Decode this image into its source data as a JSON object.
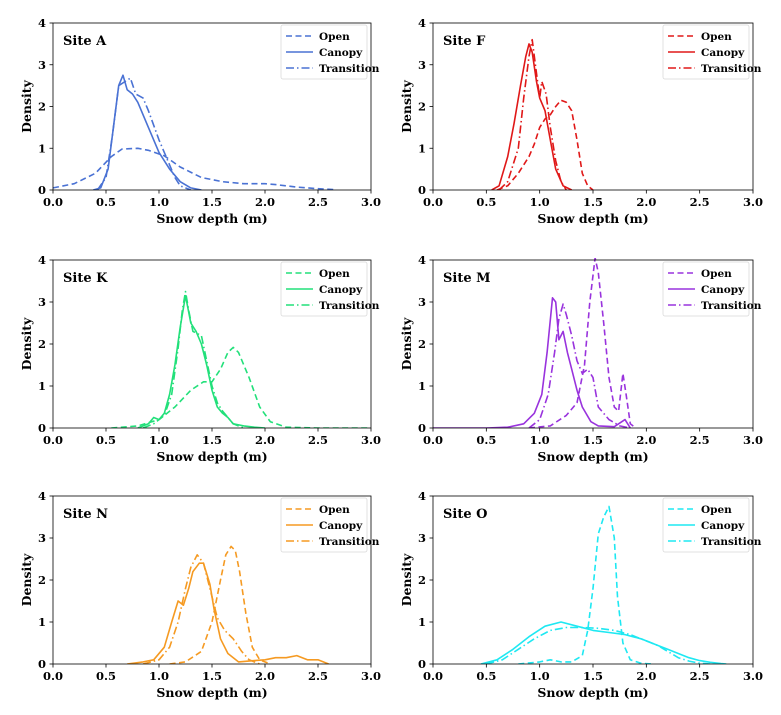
{
  "chart_data": [
    {
      "type": "line",
      "title": "Site A",
      "color": "#4a72d4",
      "xlabel": "Snow depth (m)",
      "ylabel": "Density",
      "xlim": [
        0,
        3
      ],
      "ylim": [
        0,
        4
      ],
      "xticks": [
        "0.0",
        "0.5",
        "1.0",
        "1.5",
        "2.0",
        "2.5",
        "3.0"
      ],
      "yticks": [
        "0",
        "1",
        "2",
        "3",
        "4"
      ],
      "legend_position": "top-right",
      "series": [
        {
          "name": "Open",
          "style": "dashed",
          "x": [
            0,
            0.2,
            0.4,
            0.55,
            0.65,
            0.8,
            0.9,
            1.05,
            1.2,
            1.4,
            1.6,
            1.8,
            2.0,
            2.1,
            2.3,
            2.5,
            2.65
          ],
          "y": [
            0.05,
            0.15,
            0.4,
            0.8,
            0.98,
            1.0,
            0.95,
            0.82,
            0.55,
            0.3,
            0.2,
            0.15,
            0.15,
            0.13,
            0.07,
            0.03,
            0.01
          ]
        },
        {
          "name": "Canopy",
          "style": "solid",
          "x": [
            0.38,
            0.45,
            0.52,
            0.57,
            0.62,
            0.66,
            0.7,
            0.75,
            0.8,
            0.9,
            1.0,
            1.1,
            1.2,
            1.3,
            1.4
          ],
          "y": [
            0.0,
            0.05,
            0.5,
            1.5,
            2.5,
            2.75,
            2.4,
            2.3,
            2.1,
            1.5,
            0.9,
            0.5,
            0.2,
            0.05,
            0.0
          ]
        },
        {
          "name": "Transition",
          "style": "dashdot",
          "x": [
            0.42,
            0.5,
            0.56,
            0.62,
            0.68,
            0.73,
            0.78,
            0.85,
            0.9,
            1.0,
            1.1,
            1.15,
            1.2,
            1.3
          ],
          "y": [
            0.0,
            0.3,
            1.3,
            2.5,
            2.6,
            2.68,
            2.3,
            2.2,
            1.9,
            1.2,
            0.6,
            0.3,
            0.1,
            0.0
          ]
        }
      ]
    },
    {
      "type": "line",
      "title": "Site F",
      "color": "#e01818",
      "xlabel": "Snow depth (m)",
      "ylabel": "Density",
      "xlim": [
        0,
        3
      ],
      "ylim": [
        0,
        4
      ],
      "xticks": [
        "0.0",
        "0.5",
        "1.0",
        "1.5",
        "2.0",
        "2.5",
        "3.0"
      ],
      "yticks": [
        "0",
        "1",
        "2",
        "3",
        "4"
      ],
      "legend_position": "top-right",
      "series": [
        {
          "name": "Open",
          "style": "dashed",
          "x": [
            0.6,
            0.7,
            0.8,
            0.9,
            0.95,
            1.0,
            1.05,
            1.1,
            1.15,
            1.2,
            1.25,
            1.3,
            1.35,
            1.4,
            1.45,
            1.5
          ],
          "y": [
            0.0,
            0.1,
            0.4,
            0.8,
            1.1,
            1.5,
            1.7,
            1.8,
            2.0,
            2.15,
            2.1,
            1.9,
            1.2,
            0.4,
            0.1,
            0.0
          ]
        },
        {
          "name": "Canopy",
          "style": "solid",
          "x": [
            0.55,
            0.62,
            0.7,
            0.76,
            0.82,
            0.87,
            0.9,
            0.93,
            0.97,
            1.0,
            1.05,
            1.1,
            1.15,
            1.22,
            1.3
          ],
          "y": [
            0.0,
            0.1,
            0.8,
            1.6,
            2.5,
            3.2,
            3.5,
            3.3,
            2.6,
            2.2,
            1.9,
            1.2,
            0.5,
            0.1,
            0.0
          ]
        },
        {
          "name": "Transition",
          "style": "dashdot",
          "x": [
            0.62,
            0.7,
            0.8,
            0.85,
            0.9,
            0.93,
            0.96,
            1.0,
            1.02,
            1.06,
            1.1,
            1.15,
            1.2,
            1.25
          ],
          "y": [
            0.0,
            0.2,
            1.0,
            2.2,
            3.2,
            3.6,
            3.0,
            2.2,
            2.6,
            2.3,
            1.5,
            0.7,
            0.2,
            0.0
          ]
        }
      ]
    },
    {
      "type": "line",
      "title": "Site K",
      "color": "#22e07a",
      "xlabel": "Snow depth (m)",
      "ylabel": "Density",
      "xlim": [
        0,
        3
      ],
      "ylim": [
        0,
        4
      ],
      "xticks": [
        "0.0",
        "0.5",
        "1.0",
        "1.5",
        "2.0",
        "2.5",
        "3.0"
      ],
      "yticks": [
        "0",
        "1",
        "2",
        "3",
        "4"
      ],
      "legend_position": "top-right",
      "series": [
        {
          "name": "Open",
          "style": "dashed",
          "x": [
            0.55,
            0.8,
            1.0,
            1.15,
            1.3,
            1.42,
            1.5,
            1.58,
            1.65,
            1.7,
            1.75,
            1.85,
            1.95,
            2.05,
            2.2,
            2.5,
            3.0
          ],
          "y": [
            0.0,
            0.05,
            0.2,
            0.5,
            0.9,
            1.1,
            1.1,
            1.4,
            1.8,
            1.92,
            1.8,
            1.2,
            0.5,
            0.15,
            0.02,
            0.0,
            0.0
          ]
        },
        {
          "name": "Canopy",
          "style": "solid",
          "x": [
            0.8,
            0.9,
            0.95,
            1.0,
            1.05,
            1.1,
            1.15,
            1.2,
            1.25,
            1.3,
            1.35,
            1.4,
            1.45,
            1.5,
            1.55,
            1.6,
            1.65,
            1.7,
            1.8,
            1.9,
            2.0
          ],
          "y": [
            0.0,
            0.1,
            0.25,
            0.2,
            0.35,
            0.8,
            1.5,
            2.4,
            3.15,
            2.5,
            2.3,
            2.0,
            1.5,
            0.9,
            0.5,
            0.35,
            0.25,
            0.1,
            0.05,
            0.02,
            0.0
          ]
        },
        {
          "name": "Transition",
          "style": "dashdot",
          "x": [
            0.85,
            0.95,
            1.05,
            1.12,
            1.18,
            1.22,
            1.25,
            1.28,
            1.32,
            1.4,
            1.45,
            1.5,
            1.55,
            1.6,
            1.7,
            1.8
          ],
          "y": [
            0.0,
            0.1,
            0.3,
            0.8,
            1.9,
            2.8,
            3.25,
            2.8,
            2.3,
            2.2,
            1.6,
            1.0,
            0.6,
            0.4,
            0.1,
            0.0
          ]
        }
      ]
    },
    {
      "type": "line",
      "title": "Site M",
      "color": "#9933dd",
      "xlabel": "Snow depth (m)",
      "ylabel": "Density",
      "xlim": [
        0,
        3
      ],
      "ylim": [
        0,
        4
      ],
      "xticks": [
        "0.0",
        "0.5",
        "1.0",
        "1.5",
        "2.0",
        "2.5",
        "3.0"
      ],
      "yticks": [
        "0",
        "1",
        "2",
        "3",
        "4"
      ],
      "legend_position": "top-right",
      "series": [
        {
          "name": "Open",
          "style": "dashed",
          "x": [
            0.9,
            1.1,
            1.25,
            1.35,
            1.42,
            1.47,
            1.52,
            1.55,
            1.6,
            1.65,
            1.7,
            1.74,
            1.78,
            1.81,
            1.85,
            1.9
          ],
          "y": [
            0.0,
            0.05,
            0.3,
            0.6,
            1.5,
            3.0,
            4.05,
            3.7,
            2.5,
            1.2,
            0.5,
            0.4,
            1.3,
            0.8,
            0.1,
            0.0
          ]
        },
        {
          "name": "Canopy",
          "style": "solid",
          "x": [
            0.0,
            0.3,
            0.5,
            0.7,
            0.85,
            0.95,
            1.02,
            1.07,
            1.12,
            1.15,
            1.18,
            1.22,
            1.26,
            1.3,
            1.35,
            1.4,
            1.48,
            1.55,
            1.7,
            1.8,
            1.85
          ],
          "y": [
            0.0,
            0.0,
            0.0,
            0.02,
            0.1,
            0.35,
            0.8,
            1.8,
            3.1,
            3.0,
            2.1,
            2.3,
            1.8,
            1.4,
            0.9,
            0.5,
            0.15,
            0.05,
            0.03,
            0.2,
            0.0
          ]
        },
        {
          "name": "Transition",
          "style": "dashdot",
          "x": [
            0.9,
            1.0,
            1.08,
            1.14,
            1.18,
            1.22,
            1.25,
            1.3,
            1.35,
            1.4,
            1.45,
            1.5,
            1.55,
            1.65,
            1.75,
            1.85
          ],
          "y": [
            0.0,
            0.2,
            0.8,
            1.8,
            2.6,
            2.95,
            2.7,
            2.2,
            1.6,
            1.3,
            1.4,
            1.2,
            0.5,
            0.2,
            0.05,
            0.0
          ]
        }
      ]
    },
    {
      "type": "line",
      "title": "Site N",
      "color": "#f59a22",
      "xlabel": "Snow depth (m)",
      "ylabel": "Density",
      "xlim": [
        0,
        3
      ],
      "ylim": [
        0,
        4
      ],
      "xticks": [
        "0.0",
        "0.5",
        "1.0",
        "1.5",
        "2.0",
        "2.5",
        "3.0"
      ],
      "yticks": [
        "0",
        "1",
        "2",
        "3",
        "4"
      ],
      "legend_position": "top-right",
      "series": [
        {
          "name": "Open",
          "style": "dashed",
          "x": [
            1.1,
            1.25,
            1.4,
            1.5,
            1.58,
            1.63,
            1.68,
            1.72,
            1.76,
            1.82,
            1.88,
            1.95,
            2.05
          ],
          "y": [
            0.0,
            0.05,
            0.3,
            1.0,
            2.0,
            2.6,
            2.8,
            2.7,
            2.2,
            1.2,
            0.4,
            0.1,
            0.0
          ]
        },
        {
          "name": "Canopy",
          "style": "solid",
          "x": [
            0.7,
            0.85,
            0.95,
            1.05,
            1.12,
            1.18,
            1.23,
            1.28,
            1.32,
            1.38,
            1.42,
            1.48,
            1.52,
            1.58,
            1.65,
            1.75,
            1.9,
            2.0,
            2.1,
            2.2,
            2.3,
            2.4,
            2.5,
            2.6
          ],
          "y": [
            0.0,
            0.05,
            0.1,
            0.4,
            1.0,
            1.5,
            1.4,
            1.8,
            2.2,
            2.4,
            2.4,
            1.9,
            1.3,
            0.6,
            0.25,
            0.05,
            0.08,
            0.1,
            0.15,
            0.15,
            0.2,
            0.1,
            0.1,
            0.0
          ]
        },
        {
          "name": "Transition",
          "style": "dashdot",
          "x": [
            0.85,
            1.0,
            1.1,
            1.18,
            1.25,
            1.3,
            1.36,
            1.42,
            1.48,
            1.55,
            1.62,
            1.7,
            1.78,
            1.85,
            1.95
          ],
          "y": [
            0.0,
            0.1,
            0.4,
            1.0,
            1.8,
            2.3,
            2.6,
            2.4,
            1.8,
            1.1,
            0.8,
            0.6,
            0.3,
            0.1,
            0.0
          ]
        }
      ]
    },
    {
      "type": "line",
      "title": "Site O",
      "color": "#1ee8f2",
      "xlabel": "Snow depth (m)",
      "ylabel": "Density",
      "xlim": [
        0,
        3
      ],
      "ylim": [
        0,
        4
      ],
      "xticks": [
        "0.0",
        "0.5",
        "1.0",
        "1.5",
        "2.0",
        "2.5",
        "3.0"
      ],
      "yticks": [
        "0",
        "1",
        "2",
        "3",
        "4"
      ],
      "legend_position": "top-right",
      "series": [
        {
          "name": "Open",
          "style": "dashed",
          "x": [
            0.8,
            1.0,
            1.1,
            1.2,
            1.3,
            1.4,
            1.45,
            1.5,
            1.55,
            1.6,
            1.65,
            1.7,
            1.73,
            1.78,
            1.85,
            1.95,
            2.05
          ],
          "y": [
            0.0,
            0.05,
            0.1,
            0.05,
            0.05,
            0.2,
            0.8,
            1.8,
            3.1,
            3.5,
            3.75,
            3.0,
            1.6,
            0.5,
            0.1,
            0.02,
            0.0
          ]
        },
        {
          "name": "Canopy",
          "style": "solid",
          "x": [
            0.45,
            0.6,
            0.75,
            0.9,
            1.05,
            1.2,
            1.35,
            1.5,
            1.65,
            1.8,
            1.95,
            2.1,
            2.2,
            2.3,
            2.4,
            2.5,
            2.6,
            2.7,
            2.75
          ],
          "y": [
            0.0,
            0.1,
            0.35,
            0.65,
            0.9,
            1.0,
            0.9,
            0.8,
            0.75,
            0.7,
            0.6,
            0.45,
            0.35,
            0.25,
            0.15,
            0.08,
            0.04,
            0.01,
            0.0
          ]
        },
        {
          "name": "Transition",
          "style": "dashdot",
          "x": [
            0.5,
            0.65,
            0.8,
            0.95,
            1.1,
            1.25,
            1.4,
            1.55,
            1.7,
            1.85,
            2.0,
            2.1,
            2.2,
            2.3,
            2.4,
            2.5,
            2.6
          ],
          "y": [
            0.0,
            0.1,
            0.35,
            0.6,
            0.8,
            0.87,
            0.87,
            0.85,
            0.8,
            0.7,
            0.55,
            0.45,
            0.3,
            0.15,
            0.07,
            0.02,
            0.0
          ]
        }
      ]
    }
  ]
}
